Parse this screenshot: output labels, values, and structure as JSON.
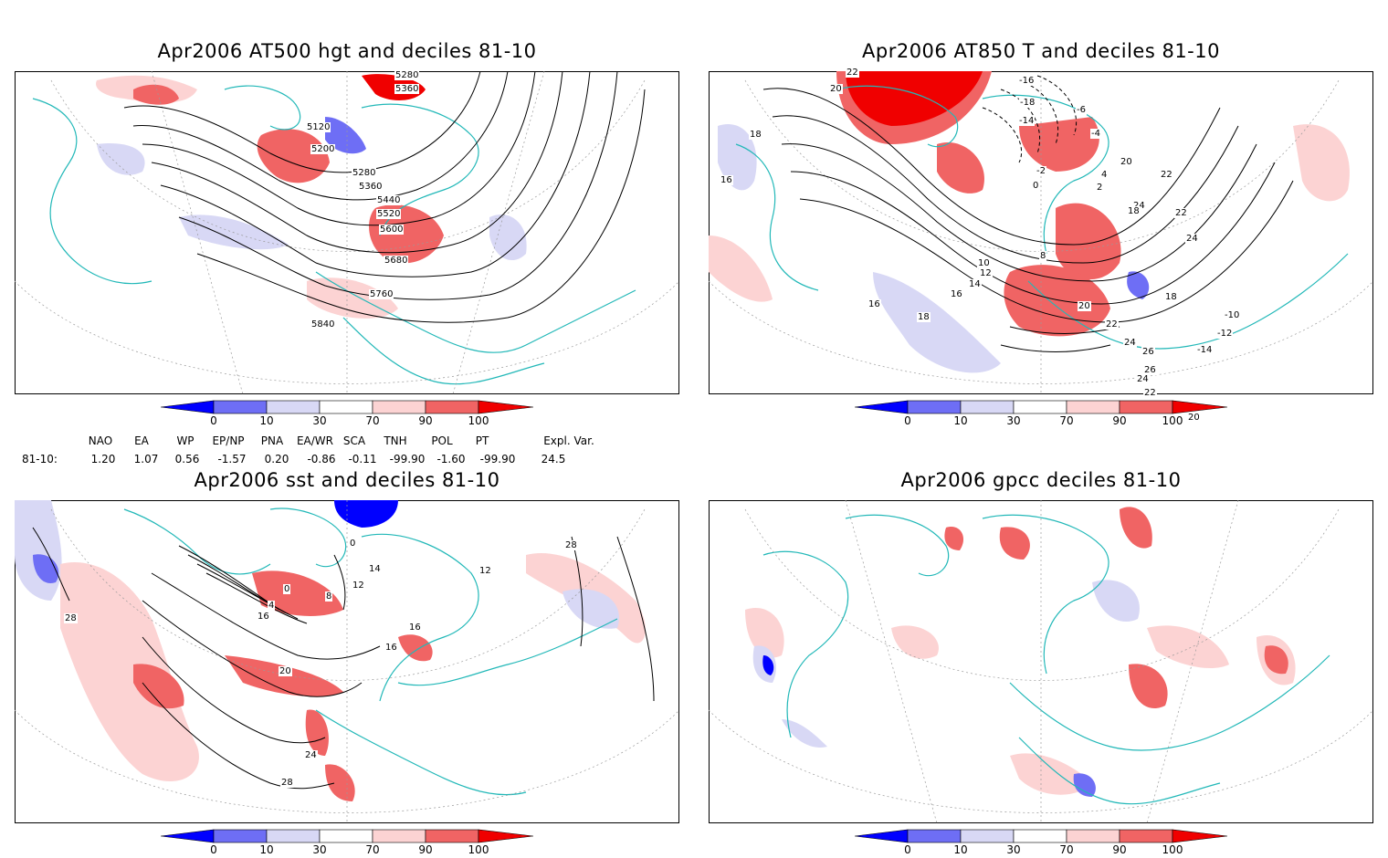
{
  "panels": [
    {
      "id": "p1",
      "title": "Apr2006 AT500 hgt and deciles 81-10",
      "contour_labels": [
        "5280",
        "5360",
        "5120",
        "5200",
        "5280",
        "5360",
        "5440",
        "5520",
        "5600",
        "5680",
        "5760",
        "5840"
      ]
    },
    {
      "id": "p2",
      "title": "Apr2006 AT850 T and deciles 81-10",
      "contour_labels": [
        "22",
        "20",
        "18",
        "16",
        "-16",
        "-18",
        "-14",
        "-6",
        "-4",
        "-2",
        "0",
        "2",
        "4",
        "24",
        "22",
        "20",
        "18",
        "22",
        "24",
        "18",
        "8",
        "10",
        "12",
        "14",
        "16",
        "18",
        "16",
        "20",
        "22",
        "24",
        "26",
        "26",
        "24",
        "22",
        "20",
        "20",
        "-14",
        "-12",
        "-10"
      ]
    },
    {
      "id": "p3",
      "title": "Apr2006 sst and deciles 81-10",
      "contour_labels": [
        "28",
        "0",
        "0",
        "4",
        "8",
        "12",
        "14",
        "16",
        "16",
        "20",
        "24",
        "28",
        "12",
        "28",
        "16"
      ]
    },
    {
      "id": "p4",
      "title": "Apr2006 gpcc deciles 81-10",
      "contour_labels": []
    }
  ],
  "colorbar": {
    "ticks": [
      "0",
      "10",
      "30",
      "70",
      "90",
      "100"
    ],
    "colors": {
      "dark_blue": "#0000ff",
      "mid_blue": "#6e6ef5",
      "light_blue": "#d8d8f5",
      "white": "#ffffff",
      "light_red": "#fcd3d3",
      "mid_red": "#f06464",
      "dark_red": "#f00000"
    }
  },
  "indices": {
    "headers": [
      "NAO",
      "EA",
      "WP",
      "EP/NP",
      "PNA",
      "EA/WR",
      "SCA",
      "TNH",
      "POL",
      "PT",
      "Expl. Var."
    ],
    "row_label": "81-10:",
    "values": [
      "1.20",
      "1.07",
      "0.56",
      "-1.57",
      "0.20",
      "-0.86",
      "-0.11",
      "-99.90",
      "-1.60",
      "-99.90",
      "24.5"
    ]
  },
  "map_colors": {
    "coast": "#22b8b8",
    "grid": "#9a9a9a",
    "contour": "#000000"
  }
}
